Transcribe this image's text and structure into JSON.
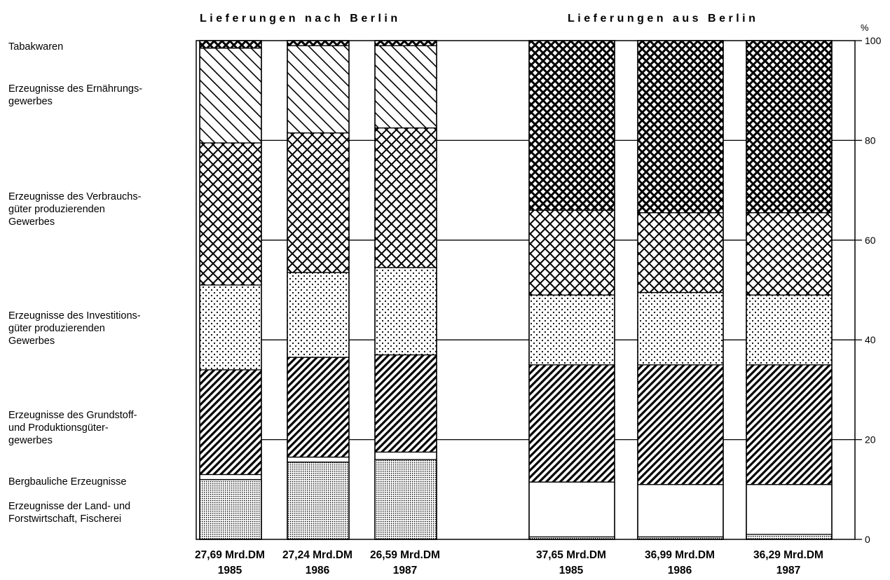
{
  "chart_data": {
    "type": "bar",
    "stacked": true,
    "percent": true,
    "groups": [
      {
        "title": "Lieferungen nach Berlin"
      },
      {
        "title": "Lieferungen aus Berlin"
      }
    ],
    "y_axis": {
      "unit": "%",
      "ticks": [
        "0",
        "20",
        "40",
        "60",
        "80",
        "100"
      ],
      "ylim": [
        0,
        100
      ]
    },
    "segments": [
      {
        "label": "Erzeugnisse der Land- und\nForstwirtschaft, Fischerei",
        "pattern": "fine-dots"
      },
      {
        "label": "Bergbauliche Erzeugnisse",
        "pattern": "white"
      },
      {
        "label": "Erzeugnisse des Grundstoff-\nund Produktionsgüter-\ngewerbes",
        "pattern": "dense-diag"
      },
      {
        "label": "Erzeugnisse des Investitions-\ngüter produzierenden\nGewerbes",
        "pattern": "sparse-dots"
      },
      {
        "label": "Erzeugnisse des Verbrauchs-\ngüter produzierenden\nGewerbes",
        "pattern": "crosshatch"
      },
      {
        "label": "Erzeugnisse des Ernährungs-\ngewerbes",
        "pattern": "back-diag"
      },
      {
        "label": "Tabakwaren",
        "pattern": "dense-crosshatch"
      }
    ],
    "bars": [
      {
        "group": 0,
        "year": "1985",
        "total": "27,69 Mrd.DM",
        "values": [
          12,
          1,
          21,
          17,
          28.5,
          19,
          1.5
        ]
      },
      {
        "group": 0,
        "year": "1986",
        "total": "27,24 Mrd.DM",
        "values": [
          15.5,
          1,
          20,
          17,
          28,
          17.5,
          1
        ]
      },
      {
        "group": 0,
        "year": "1987",
        "total": "26,59 Mrd.DM",
        "values": [
          16,
          1.5,
          19.5,
          17.5,
          28,
          16.5,
          1
        ]
      },
      {
        "group": 1,
        "year": "1985",
        "total": "37,65 Mrd.DM",
        "values": [
          0.5,
          11,
          23.5,
          14,
          17,
          0,
          34
        ]
      },
      {
        "group": 1,
        "year": "1986",
        "total": "36,99 Mrd.DM",
        "values": [
          0.5,
          10.5,
          24,
          14.5,
          16,
          0,
          34.5
        ]
      },
      {
        "group": 1,
        "year": "1987",
        "total": "36,29 Mrd.DM",
        "values": [
          1,
          10,
          24,
          14,
          16.5,
          0,
          34.5
        ]
      }
    ]
  }
}
